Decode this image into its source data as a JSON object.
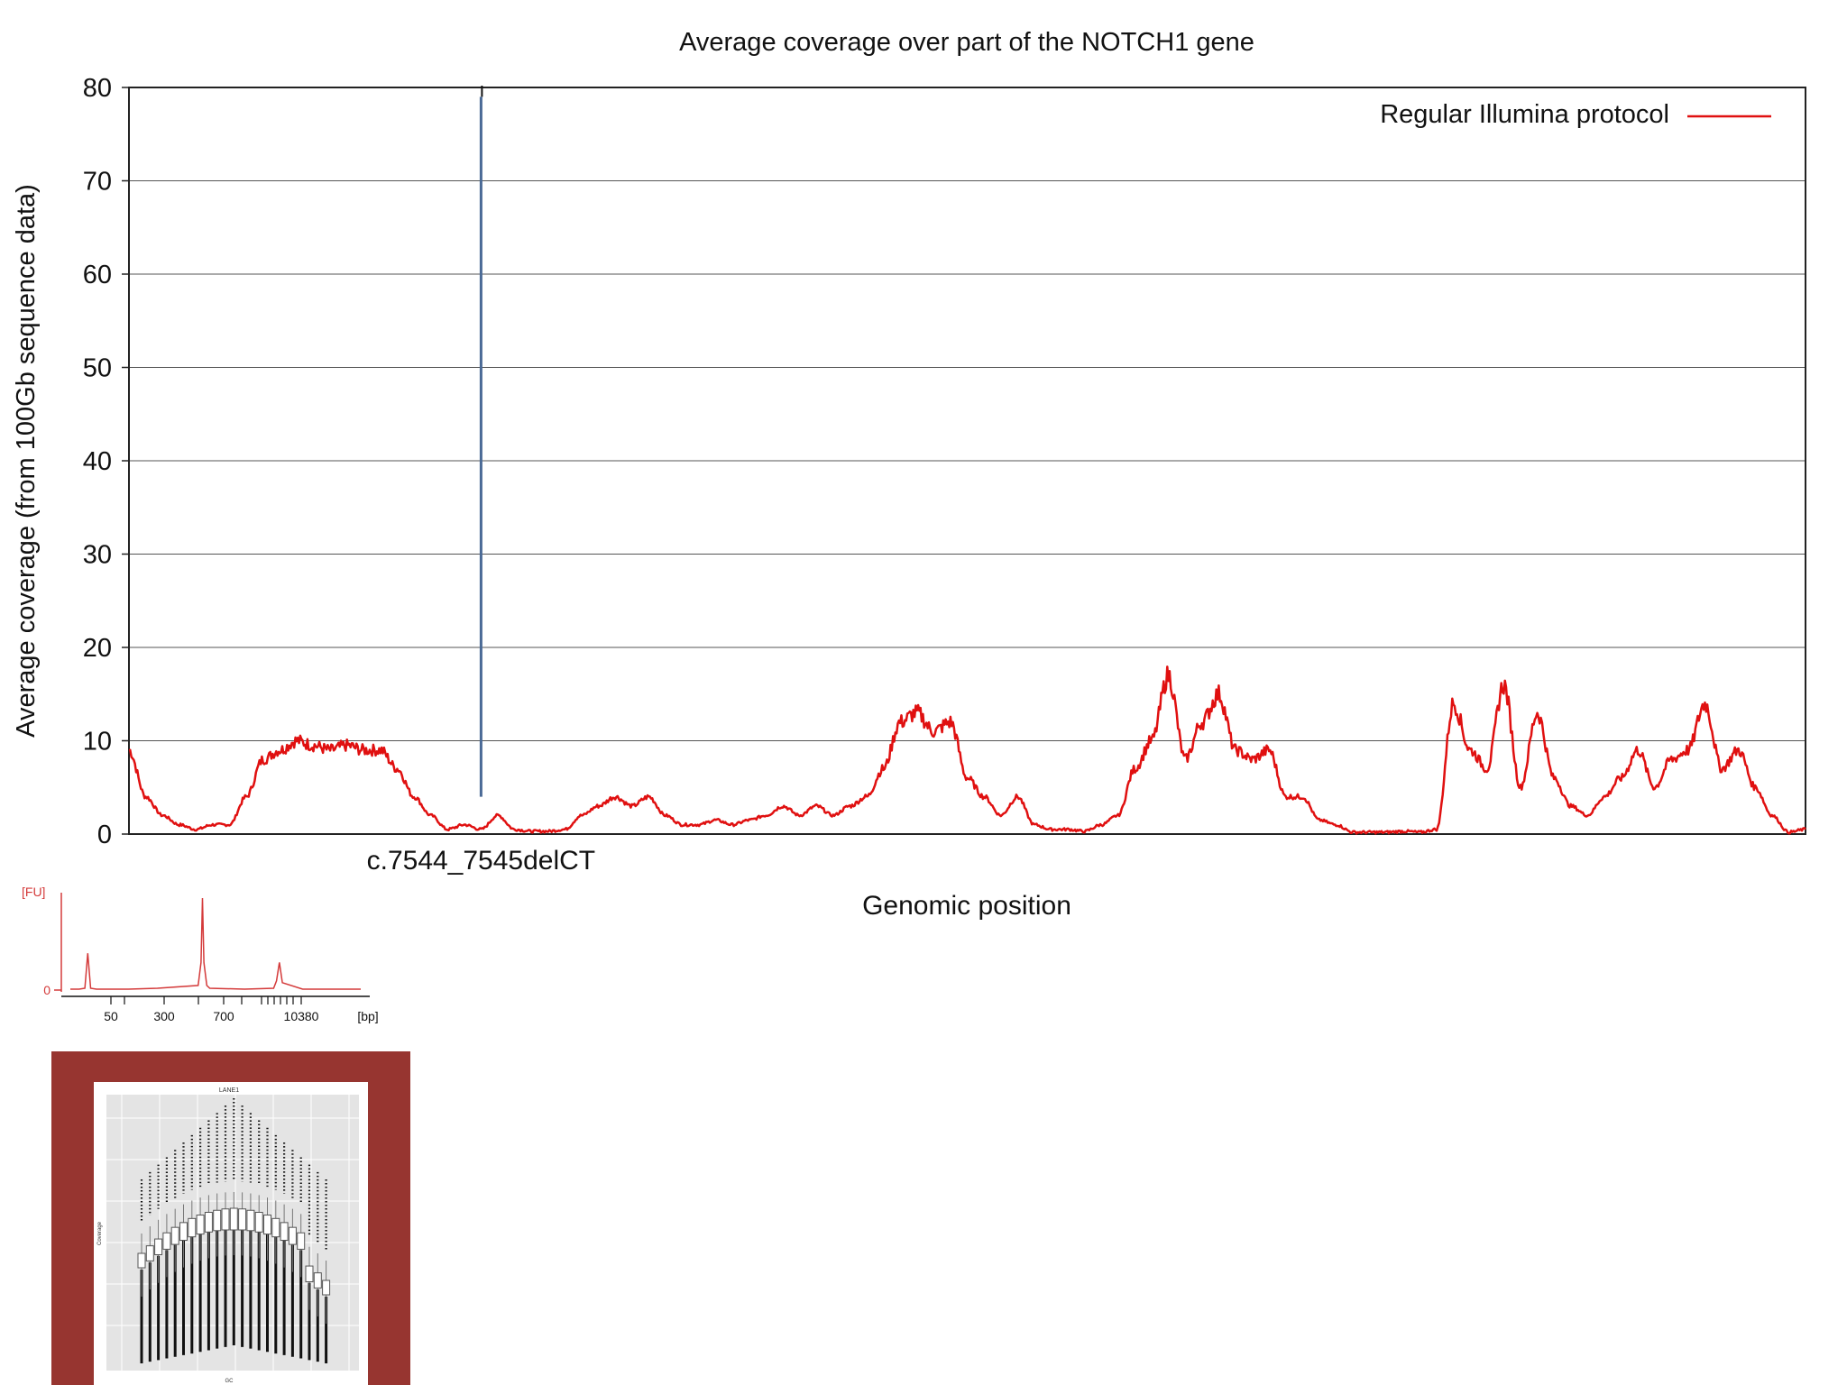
{
  "colors": {
    "coverage_line": "#e01010",
    "marker_line": "#4a6a96",
    "frame": "#222222",
    "grid": "#555555",
    "panel_border": "#973530",
    "fu_trace": "#d43a3a",
    "fu_axis": "#d43a3a"
  },
  "chart_data": [
    {
      "type": "line",
      "title": "Average coverage over part of the NOTCH1 gene",
      "xlabel": "Genomic position",
      "ylabel": "Average coverage (from 100Gb sequence data)",
      "ylim": [
        0,
        80
      ],
      "yticks": [
        0,
        10,
        20,
        30,
        40,
        50,
        60,
        70,
        80
      ],
      "grid": true,
      "legend_position": "top-right",
      "series": [
        {
          "name": "Regular Illumina protocol",
          "x": [
            0,
            1,
            2,
            3,
            4,
            5,
            6,
            7,
            8,
            9,
            10,
            11,
            12,
            13,
            14,
            15,
            16,
            17,
            18,
            19,
            20,
            21,
            22,
            23,
            24,
            25,
            26,
            27,
            28,
            29,
            30,
            31,
            32,
            33,
            34,
            35,
            36,
            37,
            38,
            39,
            40,
            41,
            42,
            43,
            44,
            45,
            46,
            47,
            48,
            49,
            50,
            51,
            52,
            53,
            54,
            55,
            56,
            57,
            58,
            59,
            60,
            61,
            62,
            63,
            64,
            65,
            66,
            67,
            68,
            69,
            70,
            71,
            72,
            73,
            74,
            75,
            76,
            77,
            78,
            79,
            80,
            81,
            82,
            83,
            84,
            85,
            86,
            87,
            88,
            89,
            90,
            91,
            92,
            93,
            94,
            95,
            96,
            97,
            98,
            99,
            100
          ],
          "values": [
            9,
            4,
            2,
            1,
            0.5,
            1,
            1,
            4,
            8,
            9,
            10,
            9.5,
            9,
            9.5,
            9,
            9,
            7,
            4,
            2,
            0.5,
            1,
            0.5,
            2,
            0.5,
            0.3,
            0.3,
            0.5,
            2,
            3,
            4,
            3,
            4,
            2,
            1,
            1,
            1.5,
            1,
            1.5,
            2,
            3,
            2,
            3,
            2,
            3,
            4,
            7,
            12,
            13,
            11,
            12,
            6,
            4,
            2,
            4,
            1,
            0.5,
            0.5,
            0.3,
            1,
            2,
            7,
            10,
            17,
            8,
            12,
            15,
            9,
            8,
            9,
            4,
            4,
            1.5,
            1,
            0.2,
            0.2,
            0.2,
            0.3,
            0.2,
            0.5,
            14,
            9,
            7,
            16,
            5,
            13,
            6,
            3,
            2,
            4,
            6,
            9,
            5,
            8,
            9,
            14,
            7,
            9,
            5,
            2,
            0.2,
            0.5
          ]
        }
      ],
      "annotations": [
        {
          "label": "c.7544_7545delCT",
          "x": 21.0,
          "marker_top": 79
        }
      ]
    },
    {
      "type": "line",
      "ylabel": "[FU]",
      "yticks": [
        "0"
      ],
      "xlabel": "[bp]",
      "xtick_labels": [
        "50",
        "300",
        "700",
        "10380"
      ],
      "x": [
        0,
        3,
        5,
        6,
        7,
        9,
        20,
        30,
        44,
        45,
        45.5,
        46,
        47,
        48,
        60,
        70,
        71,
        72,
        73,
        80,
        100
      ],
      "values": [
        0.01,
        0.01,
        0.02,
        0.4,
        0.02,
        0.01,
        0.01,
        0.02,
        0.05,
        0.3,
        1.0,
        0.3,
        0.05,
        0.02,
        0.01,
        0.02,
        0.1,
        0.3,
        0.08,
        0.01,
        0.01
      ]
    },
    {
      "type": "other",
      "title": "LANE1",
      "xlabel": "GC",
      "ylabel": "Coverage"
    }
  ]
}
